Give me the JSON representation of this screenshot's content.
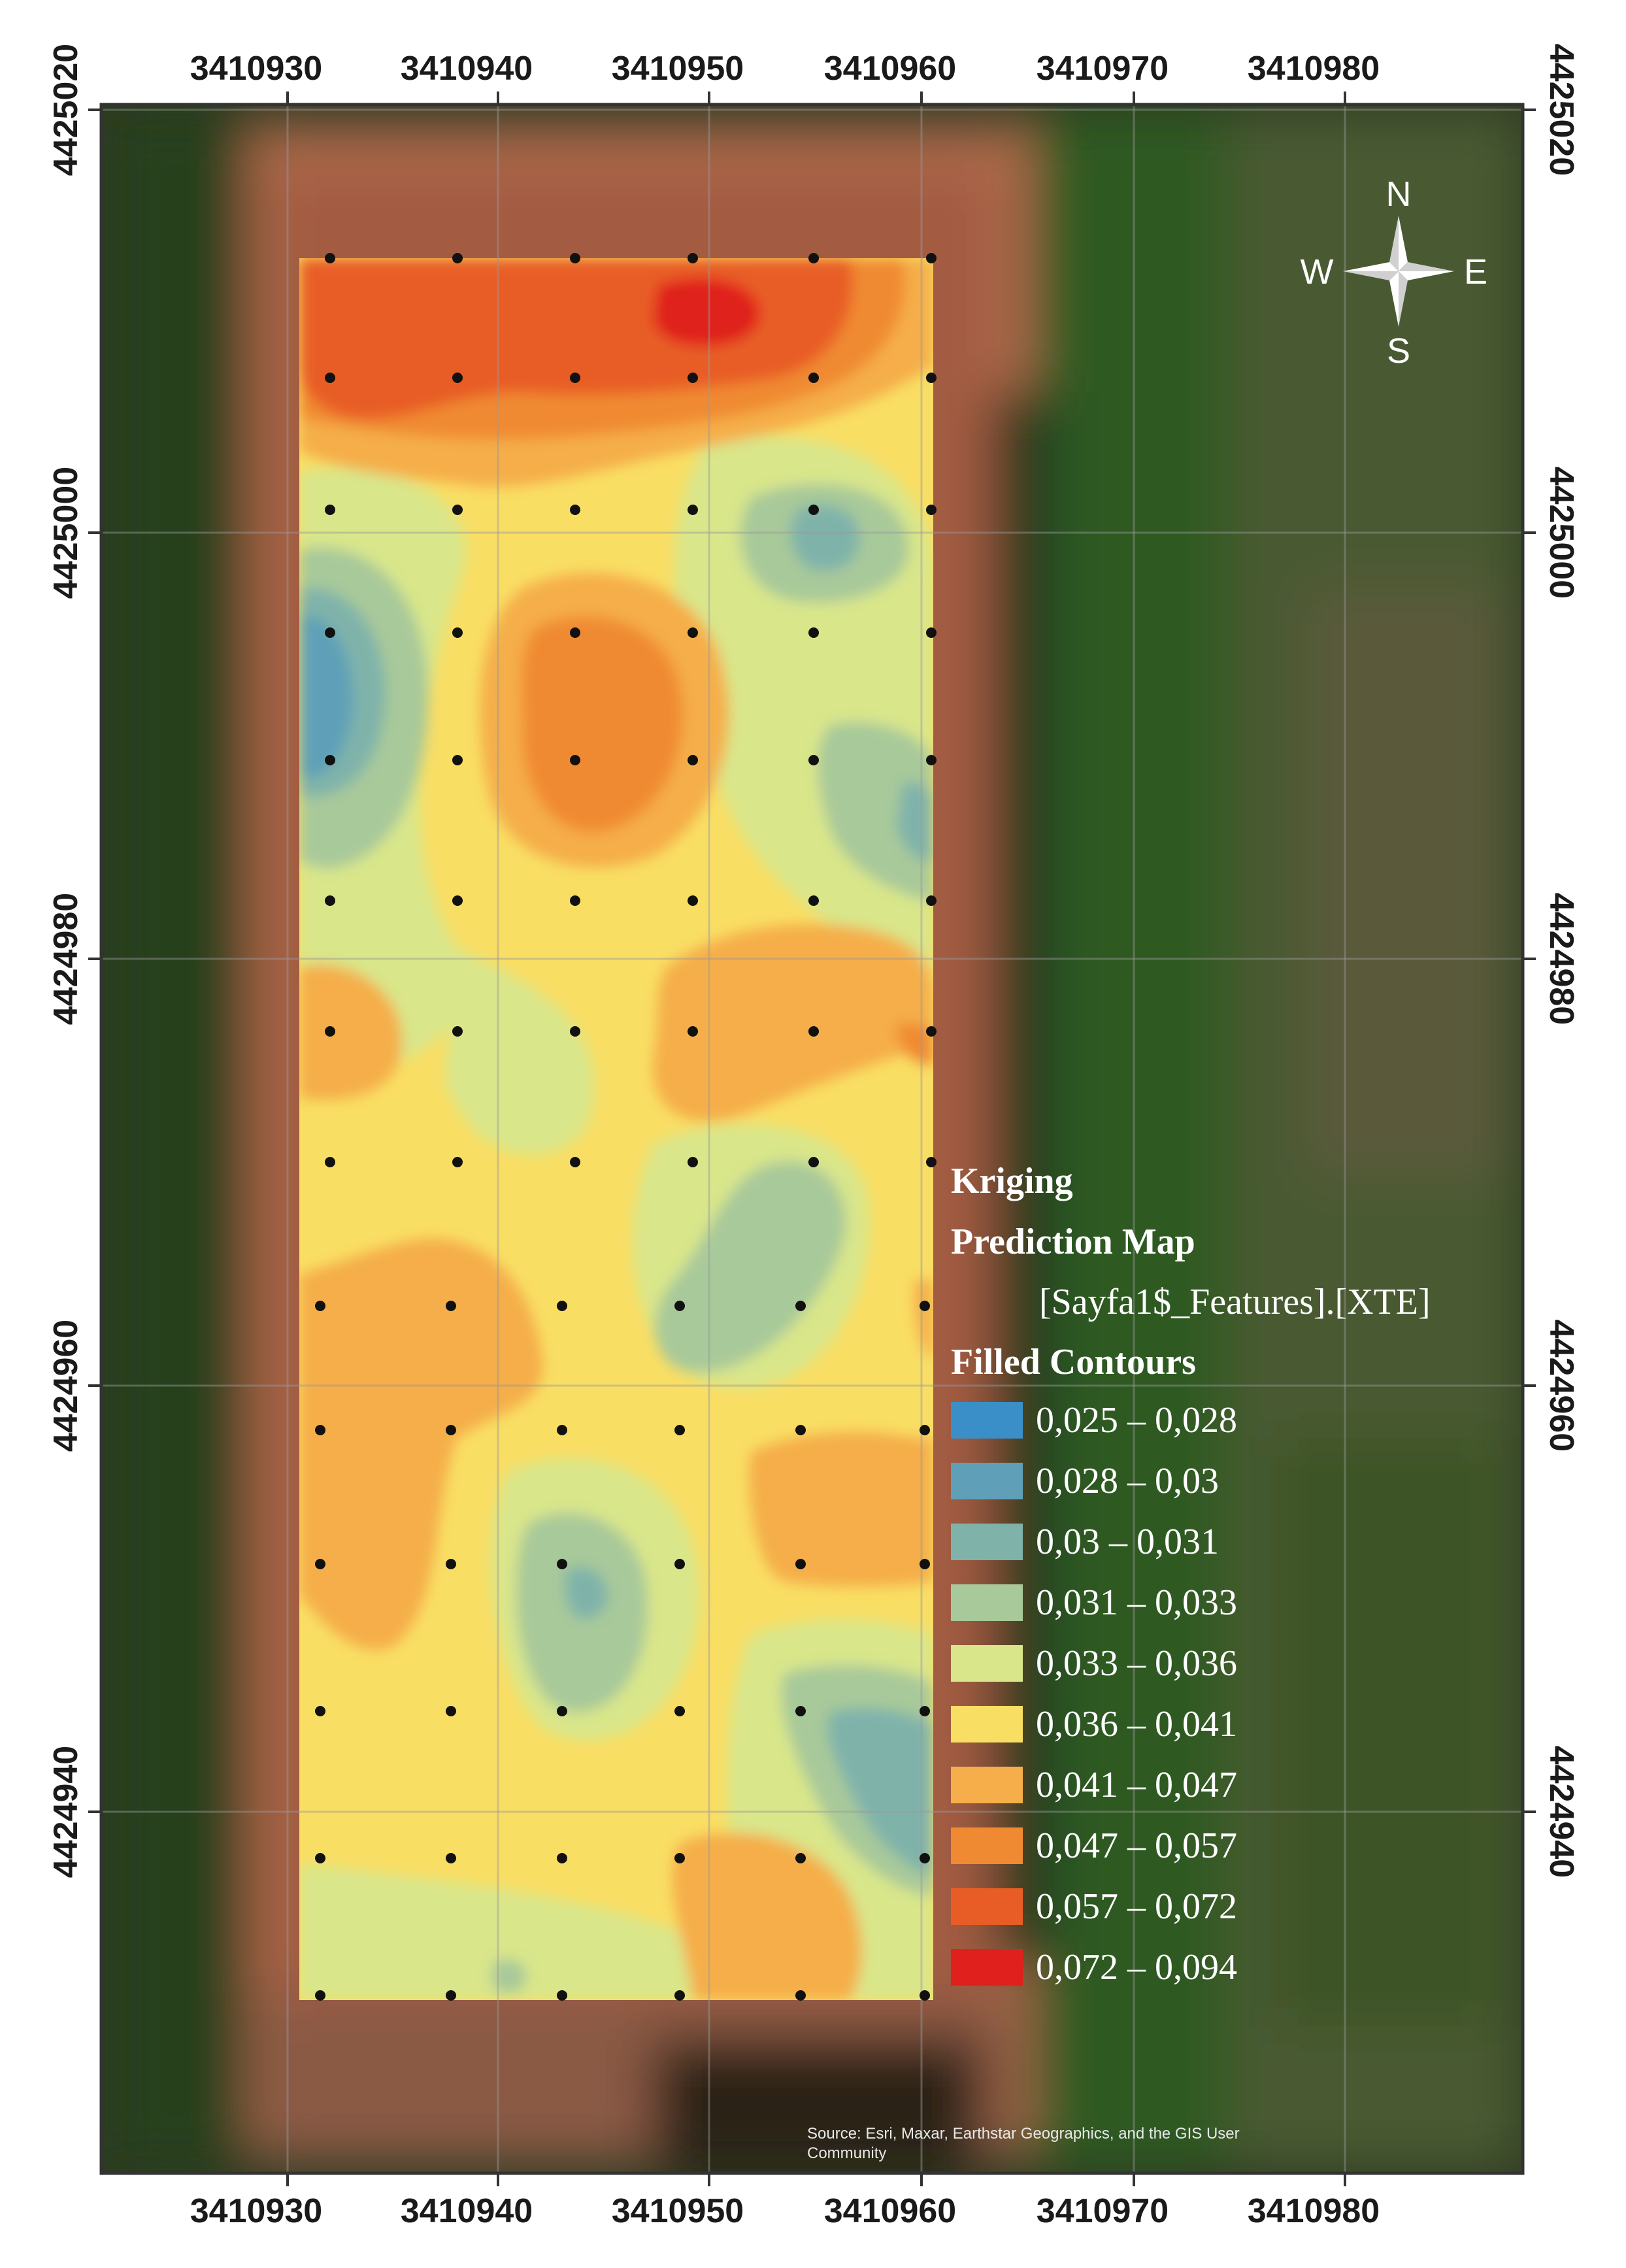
{
  "map": {
    "legend": {
      "title_line1": "Kriging",
      "title_line2": "Prediction Map",
      "layer_name": "[Sayfa1$_Features].[XTE]",
      "section_title": "Filled Contours",
      "classes": [
        {
          "label": "0,025 – 0,028",
          "color": "#3a8fc8"
        },
        {
          "label": "0,028 – 0,03",
          "color": "#5fa0b8"
        },
        {
          "label": "0,03 – 0,031",
          "color": "#7fb3aa"
        },
        {
          "label": "0,031 – 0,033",
          "color": "#a8c99a"
        },
        {
          "label": "0,033 – 0,036",
          "color": "#d9e68a"
        },
        {
          "label": "0,036 – 0,041",
          "color": "#f9de64"
        },
        {
          "label": "0,041 – 0,047",
          "color": "#f5ae4a"
        },
        {
          "label": "0,047 – 0,057",
          "color": "#f08a32"
        },
        {
          "label": "0,057 – 0,072",
          "color": "#e85d26"
        },
        {
          "label": "0,072 – 0,094",
          "color": "#e0201c"
        }
      ]
    },
    "grid": {
      "x_ticks": [
        "3410930",
        "3410940",
        "3410950",
        "3410960",
        "3410970",
        "3410980"
      ],
      "y_ticks": [
        "4425020",
        "4425000",
        "4424980",
        "4424960",
        "4424940"
      ]
    },
    "compass": {
      "n": "N",
      "s": "S",
      "e": "E",
      "w": "W"
    },
    "attribution": {
      "line1": "Source: Esri, Maxar, Earthstar Geographics, and the GIS User",
      "line2": "Community"
    }
  }
}
